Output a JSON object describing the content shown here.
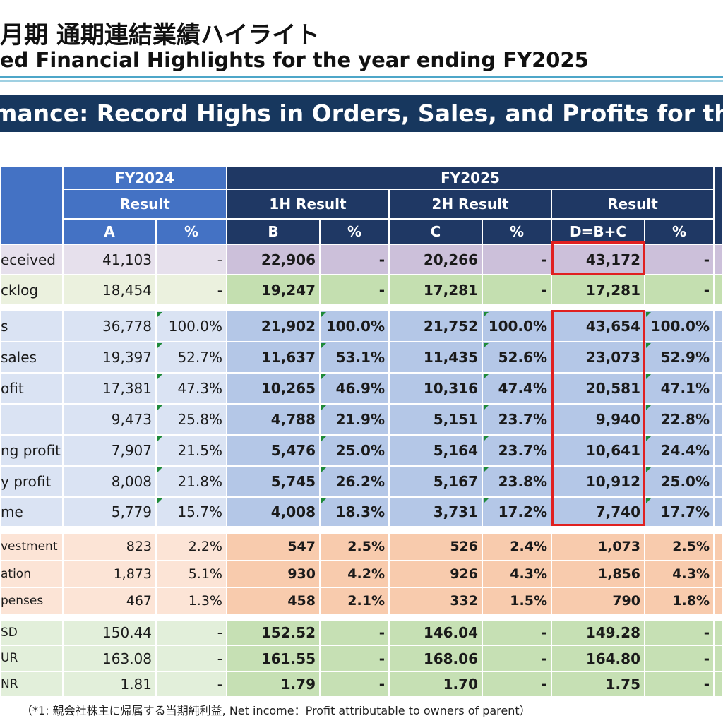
{
  "header": {
    "title_jp": "月期 通期連結業績ハイライト",
    "title_en": "ed Financial Highlights for the year ending FY2025",
    "banner": "mance: Record Highs in Orders, Sales, and Profits for the"
  },
  "table": {
    "head": {
      "fy2024": "FY2024",
      "fy2025": "FY2025",
      "result": "Result",
      "h1_result": "1H Result",
      "h2_result": "2H Result",
      "fy2025_result": "Result",
      "col_a": "A",
      "col_b": "B",
      "col_c": "C",
      "col_d": "D=B+C",
      "pct": "%"
    },
    "rows": [
      {
        "label": "eceived",
        "a": "41,103",
        "ap": "-",
        "b": "22,906",
        "bp": "-",
        "c": "20,266",
        "cp": "-",
        "d": "43,172",
        "dp": "-"
      },
      {
        "label": "cklog",
        "a": "18,454",
        "ap": "-",
        "b": "19,247",
        "bp": "-",
        "c": "17,281",
        "cp": "-",
        "d": "17,281",
        "dp": "-"
      },
      {
        "label": "s",
        "a": "36,778",
        "ap": "100.0%",
        "b": "21,902",
        "bp": "100.0%",
        "c": "21,752",
        "cp": "100.0%",
        "d": "43,654",
        "dp": "100.0%"
      },
      {
        "label": "sales",
        "a": "19,397",
        "ap": "52.7%",
        "b": "11,637",
        "bp": "53.1%",
        "c": "11,435",
        "cp": "52.6%",
        "d": "23,073",
        "dp": "52.9%"
      },
      {
        "label": "ofit",
        "a": "17,381",
        "ap": "47.3%",
        "b": "10,265",
        "bp": "46.9%",
        "c": "10,316",
        "cp": "47.4%",
        "d": "20,581",
        "dp": "47.1%"
      },
      {
        "label": "",
        "a": "9,473",
        "ap": "25.8%",
        "b": "4,788",
        "bp": "21.9%",
        "c": "5,151",
        "cp": "23.7%",
        "d": "9,940",
        "dp": "22.8%"
      },
      {
        "label": "ng profit",
        "a": "7,907",
        "ap": "21.5%",
        "b": "5,476",
        "bp": "25.0%",
        "c": "5,164",
        "cp": "23.7%",
        "d": "10,641",
        "dp": "24.4%"
      },
      {
        "label": "y profit",
        "a": "8,008",
        "ap": "21.8%",
        "b": "5,745",
        "bp": "26.2%",
        "c": "5,167",
        "cp": "23.8%",
        "d": "10,912",
        "dp": "25.0%"
      },
      {
        "label": "me",
        "a": "5,779",
        "ap": "15.7%",
        "b": "4,008",
        "bp": "18.3%",
        "c": "3,731",
        "cp": "17.2%",
        "d": "7,740",
        "dp": "17.7%"
      },
      {
        "label": "vestment",
        "a": "823",
        "ap": "2.2%",
        "b": "547",
        "bp": "2.5%",
        "c": "526",
        "cp": "2.4%",
        "d": "1,073",
        "dp": "2.5%"
      },
      {
        "label": "ation",
        "a": "1,873",
        "ap": "5.1%",
        "b": "930",
        "bp": "4.2%",
        "c": "926",
        "cp": "4.3%",
        "d": "1,856",
        "dp": "4.3%"
      },
      {
        "label": "penses",
        "a": "467",
        "ap": "1.3%",
        "b": "458",
        "bp": "2.1%",
        "c": "332",
        "cp": "1.5%",
        "d": "790",
        "dp": "1.8%"
      },
      {
        "label": "SD",
        "a": "150.44",
        "ap": "-",
        "b": "152.52",
        "bp": "-",
        "c": "146.04",
        "cp": "-",
        "d": "149.28",
        "dp": "-"
      },
      {
        "label": "UR",
        "a": "163.08",
        "ap": "-",
        "b": "161.55",
        "bp": "-",
        "c": "168.06",
        "cp": "-",
        "d": "164.80",
        "dp": "-"
      },
      {
        "label": "NR",
        "a": "1.81",
        "ap": "-",
        "b": "1.79",
        "bp": "-",
        "c": "1.70",
        "cp": "-",
        "d": "1.75",
        "dp": "-"
      }
    ]
  },
  "footnote": "（*1: 親会社株主に帰属する当期純利益, Net income：Profit attributable to owners of parent）",
  "colors": {
    "header_fy2024": "#4472c4",
    "header_fy2025": "#1f3864",
    "orders_light": "#e6e0ec",
    "orders_dark": "#ccc0da",
    "backlog_light": "#ebf1de",
    "backlog_dark": "#c4dfb0",
    "pl_light": "#dae3f3",
    "pl_dark": "#b4c7e7",
    "cost_light": "#fce4d6",
    "cost_dark": "#f8cbad",
    "fx_light": "#e2efda",
    "fx_dark": "#c6e0b4",
    "highlight": "#e02020"
  }
}
